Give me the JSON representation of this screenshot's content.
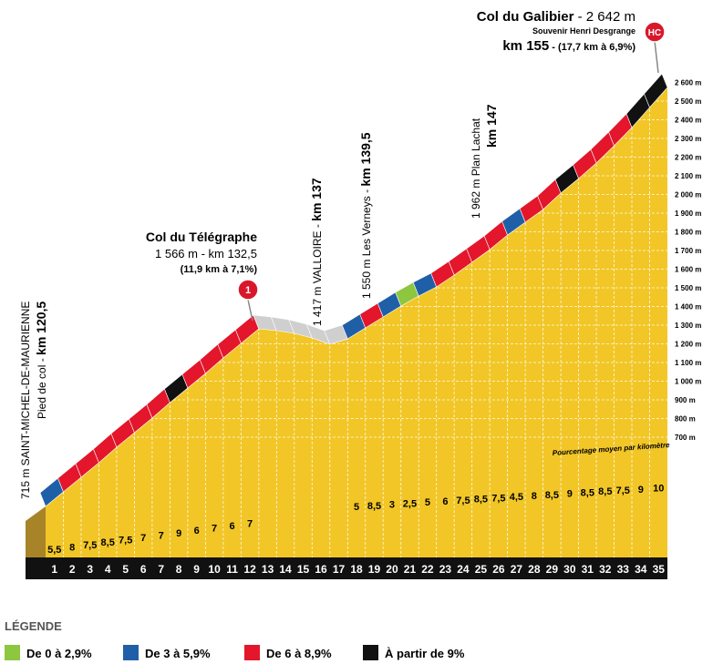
{
  "profile": {
    "altitude_labels": [
      "700 m",
      "800 m",
      "900 m",
      "1 000 m",
      "1 100 m",
      "1 200 m",
      "1 300 m",
      "1 400 m",
      "1 500 m",
      "1 600 m",
      "1 700 m",
      "1 800 m",
      "1 900 m",
      "2 000 m",
      "2 100 m",
      "2 200 m",
      "2 300 m",
      "2 400 m",
      "2 500 m",
      "2 600 m"
    ],
    "km_labels": [
      "1",
      "2",
      "3",
      "4",
      "5",
      "6",
      "7",
      "8",
      "9",
      "10",
      "11",
      "12",
      "13",
      "14",
      "15",
      "16",
      "17",
      "18",
      "19",
      "20",
      "21",
      "22",
      "23",
      "24",
      "25",
      "26",
      "27",
      "28",
      "29",
      "30",
      "31",
      "32",
      "33",
      "34",
      "35"
    ],
    "gradients_first": [
      "5,5",
      "8",
      "7,5",
      "8,5",
      "7,5",
      "7",
      "7",
      "9",
      "6",
      "7",
      "6",
      "7"
    ],
    "gradients_last": [
      "5",
      "8,5",
      "3",
      "2,5",
      "5",
      "6",
      "7,5",
      "8,5",
      "7,5",
      "4,5",
      "8",
      "8,5",
      "9",
      "8,5",
      "8,5",
      "7,5",
      "9",
      "10"
    ],
    "gradient_note": "Pourcentage moyen par kilomètre"
  },
  "annotations": {
    "galibier": {
      "name": "Col du Galibier",
      "altitude": " - 2 642 m",
      "subtitle": "Souvenir Henri Desgrange",
      "km": "km 155",
      "climb": " - (17,7 km à 6,9%)",
      "badge": "HC"
    },
    "telegraphe": {
      "name": "Col du Télégraphe",
      "line2": "1 566 m - km 132,5",
      "line3": "(11,9 km à 7,1%)",
      "badge": "1"
    },
    "start": {
      "line1": "715 m SAINT-MICHEL-DE-MAURIENNE",
      "line2": "Pied de col - ",
      "km": "km 120,5"
    },
    "valloire": {
      "text": "1 417 m VALLOIRE - ",
      "km": "km 137"
    },
    "verneys": {
      "text": "1 550 m Les Verneys - ",
      "km": "km 139,5"
    },
    "plan_lachat": {
      "text": "1 962 m Plan Lachat",
      "km": "km 147"
    }
  },
  "legend": {
    "title": "LÉGENDE",
    "items": [
      {
        "label": "De 0 à 2,9%",
        "color": "#8dc63f"
      },
      {
        "label": "De 3 à 5,9%",
        "color": "#1f5fa8"
      },
      {
        "label": "De 6 à 8,9%",
        "color": "#e3162b"
      },
      {
        "label": "À partir de 9%",
        "color": "#111111"
      }
    ]
  }
}
